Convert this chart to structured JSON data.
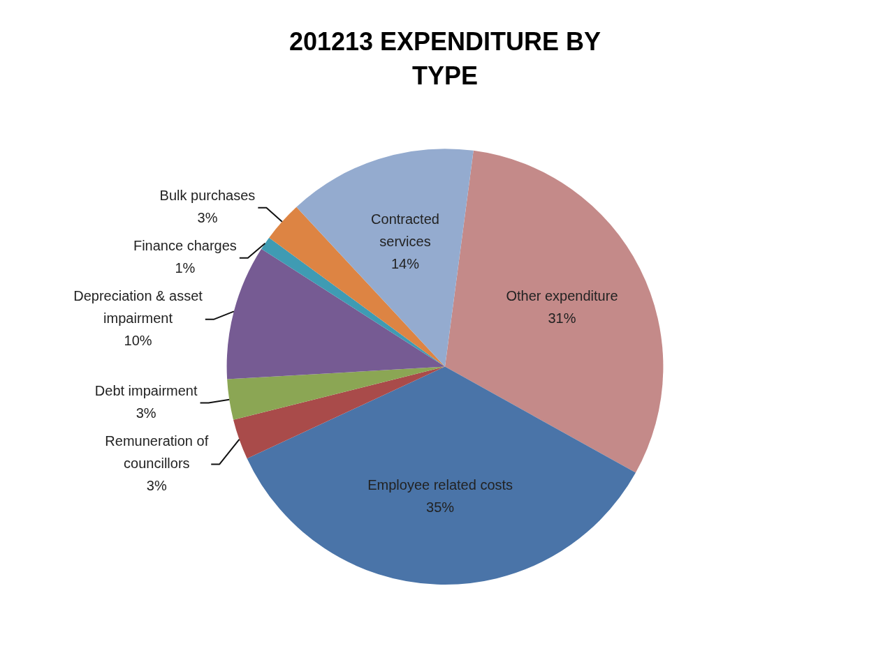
{
  "chart_data": {
    "type": "pie",
    "title": "201213 EXPENDITURE BY TYPE",
    "categories": [
      "Other expenditure",
      "Employee related costs",
      "Remuneration of councillors",
      "Debt impairment",
      "Depreciation & asset impairment",
      "Finance charges",
      "Bulk purchases",
      "Contracted services"
    ],
    "values": [
      31,
      35,
      3,
      3,
      10,
      1,
      3,
      14
    ],
    "value_labels": [
      "31%",
      "35%",
      "3%",
      "3%",
      "10%",
      "1%",
      "3%",
      "14%"
    ],
    "colors": [
      "#c48a89",
      "#4a74a8",
      "#a94b4a",
      "#8ba654",
      "#765b93",
      "#3f9bb3",
      "#dd8443",
      "#94abcf"
    ],
    "legend": false
  }
}
